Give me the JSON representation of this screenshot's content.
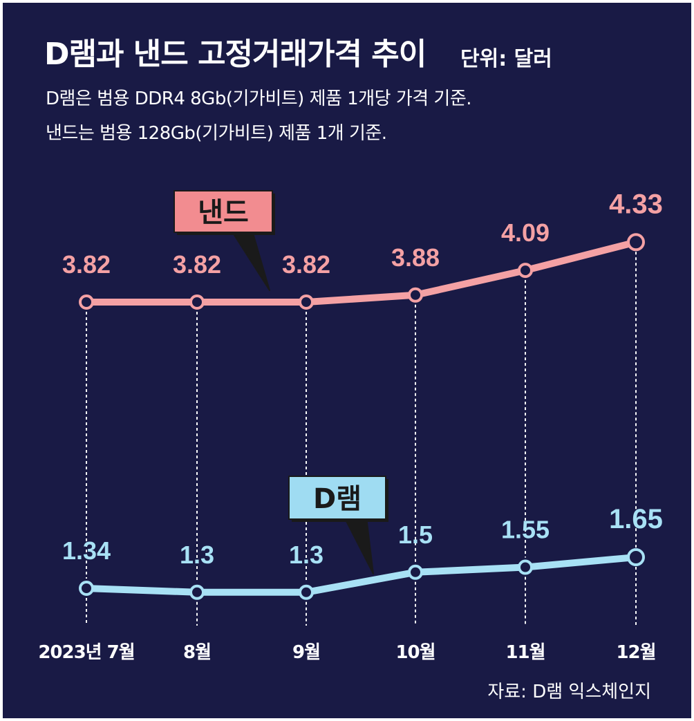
{
  "header": {
    "title": "D램과 낸드 고정거래가격 추이",
    "unit": "단위: 달러",
    "note_line1": "D램은 범용 DDR4 8Gb(기가비트) 제품 1개당 가격 기준.",
    "note_line2": "낸드는 범용 128Gb(기가비트) 제품 1개 기준."
  },
  "source": "자료: D램 익스체인지",
  "colors": {
    "background": "#191a45",
    "nand": "#f4a1a4",
    "nand_label_bg": "#f28c90",
    "dram": "#a8e1f5",
    "dram_label_bg": "#9fdcf2",
    "guide": "#ffffff"
  },
  "chart_data": {
    "type": "line",
    "categories": [
      "2023년 7월",
      "8월",
      "9월",
      "10월",
      "11월",
      "12월"
    ],
    "series": [
      {
        "name": "낸드",
        "values": [
          3.82,
          3.82,
          3.82,
          3.88,
          4.09,
          4.33
        ],
        "labels": [
          "3.82",
          "3.82",
          "3.82",
          "3.88",
          "4.09",
          "4.33"
        ]
      },
      {
        "name": "D램",
        "values": [
          1.34,
          1.3,
          1.3,
          1.5,
          1.55,
          1.65
        ],
        "labels": [
          "1.34",
          "1.3",
          "1.3",
          "1.5",
          "1.55",
          "1.65"
        ]
      }
    ],
    "grid": "vertical dotted guides at each month",
    "legend": "callout labels on each line"
  }
}
